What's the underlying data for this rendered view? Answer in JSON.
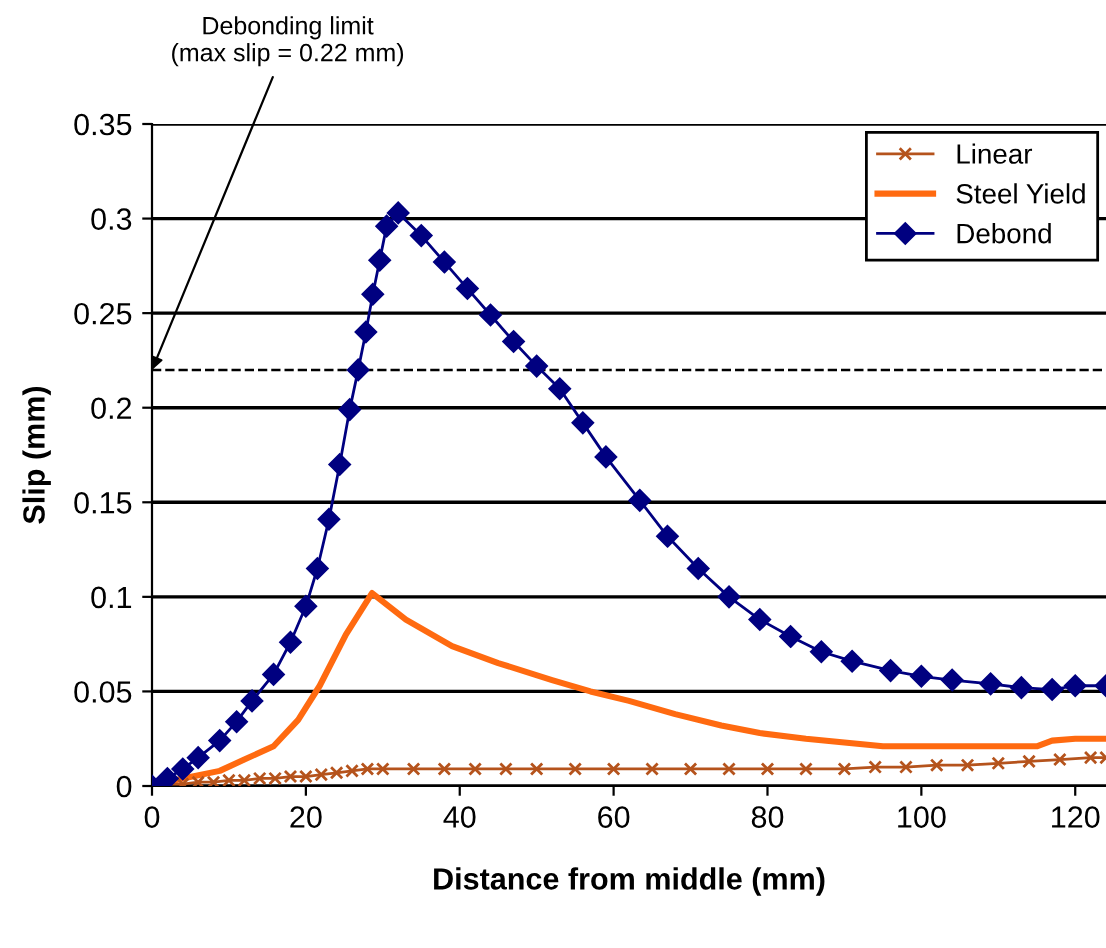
{
  "chart_data": {
    "type": "line",
    "xlabel": "Distance from middle (mm)",
    "ylabel": "Slip (mm)",
    "xlim": [
      0,
      124
    ],
    "xticks": [
      0,
      20,
      40,
      60,
      80,
      100,
      120
    ],
    "ylim": [
      0,
      0.35
    ],
    "yticks": [
      0,
      0.05,
      0.1,
      0.15,
      0.2,
      0.25,
      0.3,
      0.35
    ],
    "grid": "y",
    "legend": "top right",
    "ref_lines": [
      {
        "axis": "y",
        "value": 0.22,
        "line_style": "dashed",
        "color": "#000000"
      }
    ],
    "annotations": [
      {
        "text": "Debonding limit\n(max slip = 0.22 mm)",
        "x": 0,
        "y": 0.22
      }
    ],
    "series": [
      {
        "name": "Linear",
        "color": "#b5531c",
        "marker": "cross",
        "line_style": "solid",
        "x": [
          0,
          2,
          4,
          6,
          8,
          10,
          12,
          14,
          16,
          18,
          20,
          22,
          24,
          26,
          28,
          30,
          34,
          38,
          42,
          46,
          50,
          55,
          60,
          65,
          70,
          75,
          80,
          85,
          90,
          94,
          98,
          102,
          106,
          110,
          114,
          118,
          122,
          124
        ],
        "values": [
          0,
          0.001,
          0.001,
          0.002,
          0.002,
          0.003,
          0.003,
          0.004,
          0.004,
          0.005,
          0.005,
          0.006,
          0.007,
          0.008,
          0.009,
          0.009,
          0.009,
          0.009,
          0.009,
          0.009,
          0.009,
          0.009,
          0.009,
          0.009,
          0.009,
          0.009,
          0.009,
          0.009,
          0.009,
          0.01,
          0.01,
          0.011,
          0.011,
          0.012,
          0.013,
          0.014,
          0.015,
          0.015
        ]
      },
      {
        "name": "Steel Yield",
        "color": "#ff6a10",
        "marker": "none",
        "line_style": "solid",
        "x": [
          0,
          4,
          8.8,
          12,
          15.8,
          19,
          21.8,
          25.2,
          28.6,
          33,
          39,
          45,
          52,
          57,
          62,
          68,
          74,
          79,
          85,
          90,
          95,
          100,
          105,
          110,
          115,
          117,
          120,
          124
        ],
        "values": [
          0,
          0.004,
          0.008,
          0.014,
          0.021,
          0.035,
          0.053,
          0.08,
          0.102,
          0.088,
          0.074,
          0.065,
          0.056,
          0.05,
          0.045,
          0.038,
          0.032,
          0.028,
          0.025,
          0.023,
          0.021,
          0.021,
          0.021,
          0.021,
          0.021,
          0.024,
          0.025,
          0.025
        ]
      },
      {
        "name": "Debond",
        "color": "#000080",
        "marker": "diamond",
        "line_style": "solid",
        "x": [
          0,
          2,
          4,
          6,
          8.8,
          11,
          13,
          15.8,
          18,
          20,
          21.5,
          23,
          24.4,
          25.7,
          26.8,
          27.8,
          28.7,
          29.6,
          30.5,
          32,
          35,
          38,
          41,
          44,
          47,
          50,
          53,
          56,
          59,
          63.4,
          67,
          71,
          75,
          79,
          83,
          87,
          91,
          96,
          100,
          104,
          109,
          113,
          117,
          120,
          124
        ],
        "values": [
          0,
          0.004,
          0.009,
          0.015,
          0.024,
          0.034,
          0.045,
          0.059,
          0.076,
          0.095,
          0.115,
          0.141,
          0.17,
          0.199,
          0.22,
          0.24,
          0.26,
          0.278,
          0.296,
          0.303,
          0.291,
          0.277,
          0.263,
          0.249,
          0.235,
          0.222,
          0.21,
          0.192,
          0.174,
          0.151,
          0.132,
          0.115,
          0.1,
          0.088,
          0.079,
          0.071,
          0.066,
          0.061,
          0.058,
          0.056,
          0.054,
          0.052,
          0.051,
          0.053,
          0.053
        ]
      }
    ]
  }
}
